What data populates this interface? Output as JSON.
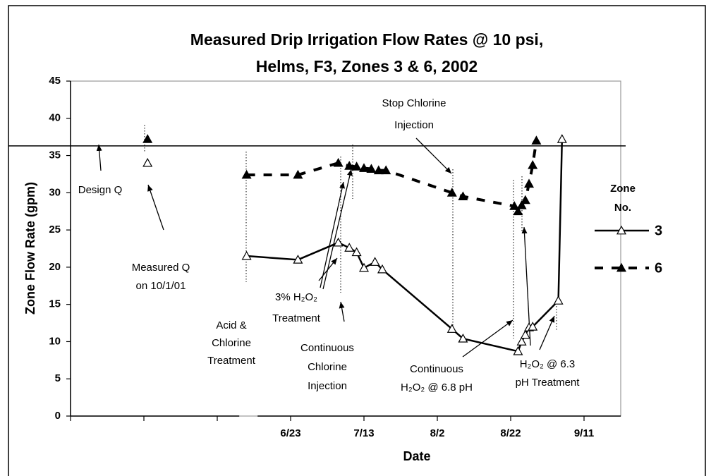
{
  "chart_data": {
    "type": "line",
    "title": [
      "Measured Drip Irrigation Flow Rates @ 10 psi,",
      "Helms, F3, Zones 3 & 6, 2002"
    ],
    "x_label": "Date",
    "y_label": "Zone Flow Rate (gpm)",
    "xlim": [
      [
        -112,
        -66
      ],
      [
        160,
        264
      ]
    ],
    "xticks": [
      {
        "value": 174,
        "label": "6/23"
      },
      {
        "value": 194,
        "label": "7/13"
      },
      {
        "value": 214,
        "label": "8/2"
      },
      {
        "value": 234,
        "label": "8/22"
      },
      {
        "value": 254,
        "label": "9/11"
      }
    ],
    "xticks_minor": [
      -112,
      -92,
      -72
    ],
    "ylim": [
      0,
      45
    ],
    "yticks": [
      0,
      5,
      10,
      15,
      20,
      25,
      30,
      35,
      40,
      45
    ],
    "design_q": 36.3,
    "legend_title": [
      "Zone",
      "No."
    ],
    "series": [
      {
        "name": "3",
        "color": "#000000",
        "dash": false,
        "marker": "open-triangle",
        "x": [
          -91,
          null,
          162,
          176,
          187,
          190,
          192,
          194,
          197,
          199,
          218,
          221,
          236,
          237,
          238,
          239,
          240,
          247,
          248
        ],
        "values": [
          34.0,
          null,
          21.5,
          21.0,
          23.3,
          22.6,
          22.0,
          19.9,
          20.7,
          19.7,
          11.7,
          10.4,
          8.7,
          10.0,
          10.9,
          11.9,
          12.0,
          15.5,
          37.2
        ]
      },
      {
        "name": "6",
        "color": "#000000",
        "dash": true,
        "marker": "filled-triangle",
        "x": [
          -91,
          null,
          162,
          176,
          187,
          190,
          192,
          194,
          196,
          198,
          200,
          218,
          221,
          235,
          236,
          237,
          238,
          239,
          240,
          241
        ],
        "values": [
          37.2,
          null,
          32.4,
          32.4,
          34.0,
          33.6,
          33.5,
          33.3,
          33.2,
          33.0,
          33.0,
          30.0,
          29.5,
          28.2,
          27.5,
          28.3,
          29.0,
          31.2,
          33.7,
          37.0
        ]
      }
    ],
    "annotations": [
      [
        "Design Q"
      ],
      [
        "Measured Q",
        "on 10/1/01"
      ],
      [
        "Acid &",
        "Chlorine",
        "Treatment"
      ],
      [
        "3% H₂O₂",
        "Treatment"
      ],
      [
        "Continuous",
        "Chlorine",
        "Injection"
      ],
      [
        "Stop Chlorine",
        "Injection"
      ],
      [
        "Continuous",
        "H₂O₂ @ 6.8 pH"
      ],
      [
        "H₂O₂ @ 6.3",
        "pH Treatment"
      ]
    ]
  }
}
